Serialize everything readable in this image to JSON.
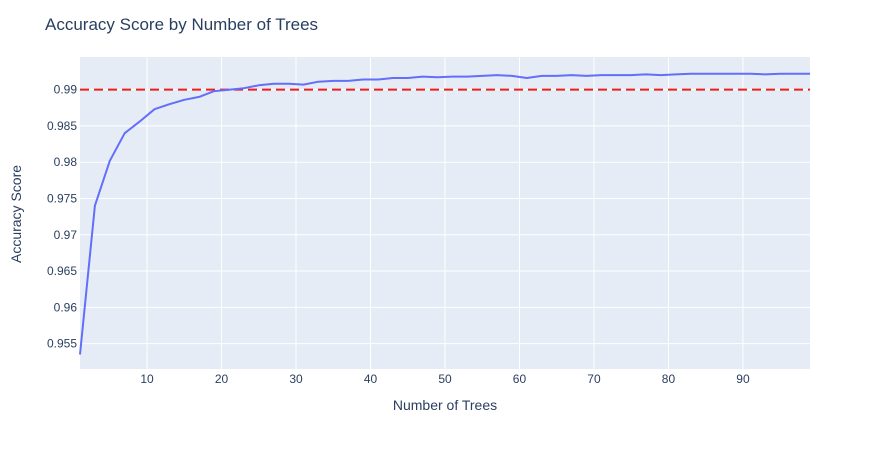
{
  "chart_data": {
    "type": "line",
    "title": "Accuracy Score by Number of Trees",
    "xlabel": "Number of Trees",
    "ylabel": "Accuracy Score",
    "xlim": [
      1,
      99
    ],
    "ylim": [
      0.9515,
      0.9945
    ],
    "x_ticks": [
      10,
      20,
      30,
      40,
      50,
      60,
      70,
      80,
      90
    ],
    "y_ticks": [
      0.955,
      0.96,
      0.965,
      0.97,
      0.975,
      0.98,
      0.985,
      0.99
    ],
    "y_tick_labels": [
      "0.955",
      "0.96",
      "0.965",
      "0.97",
      "0.975",
      "0.98",
      "0.985",
      "0.99"
    ],
    "grid": true,
    "legend": "none",
    "colors": {
      "series": "#636efa",
      "reference": "#ef1c1c",
      "plot_bg": "#e5ecf6",
      "grid": "#ffffff",
      "text": "#2a3f5f"
    },
    "reference_line": {
      "y": 0.99,
      "style": "dashed"
    },
    "series": [
      {
        "x": [
          1,
          3,
          5,
          7,
          9,
          11,
          13,
          15,
          17,
          19,
          21,
          23,
          25,
          27,
          29,
          31,
          33,
          35,
          37,
          39,
          41,
          43,
          45,
          47,
          49,
          51,
          53,
          55,
          57,
          59,
          61,
          63,
          65,
          67,
          69,
          71,
          73,
          75,
          77,
          79,
          81,
          83,
          85,
          87,
          89,
          91,
          93,
          95,
          97,
          99
        ],
        "y": [
          0.9535,
          0.974,
          0.9802,
          0.984,
          0.9856,
          0.9873,
          0.988,
          0.9886,
          0.989,
          0.9898,
          0.99,
          0.9902,
          0.9906,
          0.9908,
          0.9908,
          0.9907,
          0.9911,
          0.9912,
          0.9912,
          0.9914,
          0.9914,
          0.9916,
          0.9916,
          0.9918,
          0.9917,
          0.9918,
          0.9918,
          0.9919,
          0.992,
          0.9919,
          0.9916,
          0.9919,
          0.9919,
          0.992,
          0.9919,
          0.992,
          0.992,
          0.992,
          0.9921,
          0.992,
          0.9921,
          0.9922,
          0.9922,
          0.9922,
          0.9922,
          0.9922,
          0.9921,
          0.9922,
          0.9922,
          0.9922
        ]
      }
    ]
  }
}
